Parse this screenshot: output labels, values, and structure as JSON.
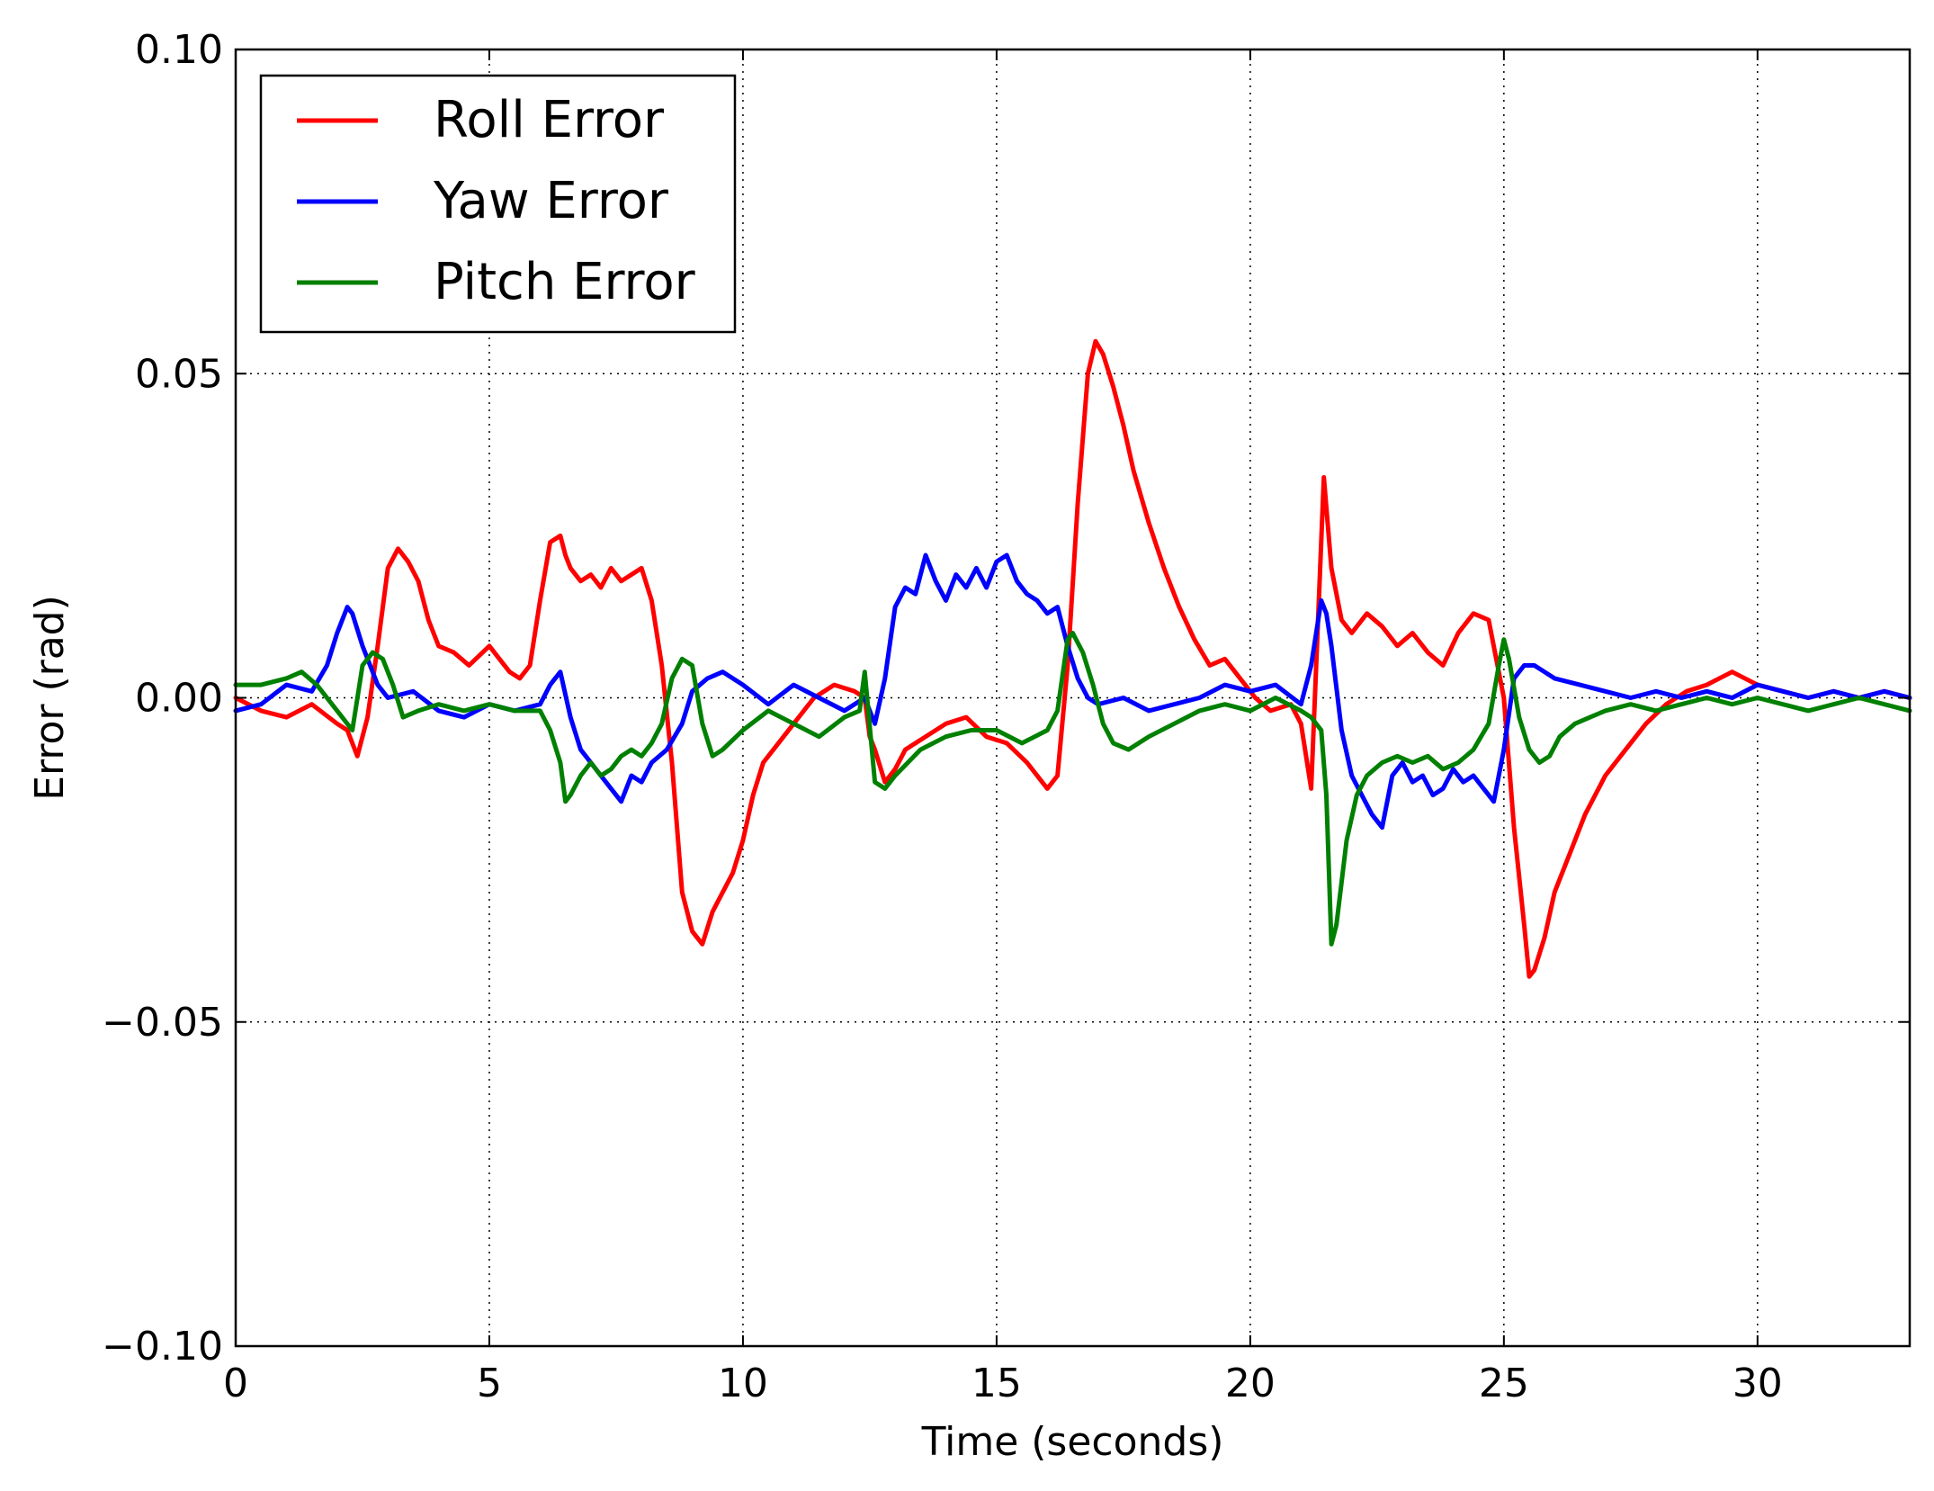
{
  "chart_data": {
    "type": "line",
    "xlabel": "Time (seconds)",
    "ylabel": "Error (rad)",
    "xlim": [
      0,
      33
    ],
    "ylim": [
      -0.1,
      0.1
    ],
    "grid": true,
    "grid_style": "dotted",
    "legend_position": "top-left",
    "x_ticks": [
      0,
      5,
      10,
      15,
      20,
      25,
      30
    ],
    "x_tick_labels": [
      "0",
      "5",
      "10",
      "15",
      "20",
      "25",
      "30"
    ],
    "y_ticks": [
      -0.1,
      -0.05,
      0.0,
      0.05,
      0.1
    ],
    "y_tick_labels": [
      "−0.10",
      "−0.05",
      "0.00",
      "0.05",
      "0.10"
    ],
    "series": [
      {
        "name": "Roll Error",
        "color": "#ff0000",
        "x": [
          0,
          0.5,
          1,
          1.5,
          2,
          2.2,
          2.4,
          2.6,
          2.8,
          3.0,
          3.2,
          3.4,
          3.6,
          3.8,
          4.0,
          4.3,
          4.6,
          5.0,
          5.2,
          5.4,
          5.6,
          5.8,
          6.0,
          6.2,
          6.4,
          6.5,
          6.6,
          6.8,
          7.0,
          7.2,
          7.4,
          7.6,
          7.8,
          8.0,
          8.2,
          8.4,
          8.6,
          8.8,
          9.0,
          9.2,
          9.4,
          9.6,
          9.8,
          10.0,
          10.2,
          10.4,
          10.6,
          11.0,
          11.4,
          11.8,
          12.2,
          12.4,
          12.5,
          12.6,
          12.8,
          13.0,
          13.2,
          13.6,
          14.0,
          14.4,
          14.8,
          15.2,
          15.6,
          16.0,
          16.2,
          16.4,
          16.6,
          16.8,
          16.95,
          17.1,
          17.3,
          17.5,
          17.7,
          18.0,
          18.3,
          18.6,
          18.9,
          19.2,
          19.5,
          19.8,
          20.1,
          20.4,
          20.8,
          21.0,
          21.2,
          21.3,
          21.45,
          21.6,
          21.8,
          22.0,
          22.3,
          22.6,
          22.9,
          23.2,
          23.5,
          23.8,
          24.1,
          24.4,
          24.7,
          25.0,
          25.2,
          25.4,
          25.5,
          25.6,
          25.8,
          26.0,
          26.3,
          26.6,
          27.0,
          27.4,
          27.8,
          28.2,
          28.6,
          29.0,
          29.5,
          30.0,
          30.5,
          31.0,
          31.5,
          32.0,
          32.5,
          33.0
        ],
        "y": [
          0.0,
          -0.002,
          -0.003,
          -0.001,
          -0.004,
          -0.005,
          -0.009,
          -0.003,
          0.008,
          0.02,
          0.023,
          0.021,
          0.018,
          0.012,
          0.008,
          0.007,
          0.005,
          0.008,
          0.006,
          0.004,
          0.003,
          0.005,
          0.015,
          0.024,
          0.025,
          0.022,
          0.02,
          0.018,
          0.019,
          0.017,
          0.02,
          0.018,
          0.019,
          0.02,
          0.015,
          0.005,
          -0.01,
          -0.03,
          -0.036,
          -0.038,
          -0.033,
          -0.03,
          -0.027,
          -0.022,
          -0.015,
          -0.01,
          -0.008,
          -0.004,
          0.0,
          0.002,
          0.001,
          0.0,
          -0.006,
          -0.008,
          -0.013,
          -0.011,
          -0.008,
          -0.006,
          -0.004,
          -0.003,
          -0.006,
          -0.007,
          -0.01,
          -0.014,
          -0.012,
          0.005,
          0.03,
          0.05,
          0.055,
          0.053,
          0.048,
          0.042,
          0.035,
          0.027,
          0.02,
          0.014,
          0.009,
          0.005,
          0.006,
          0.003,
          0.0,
          -0.002,
          -0.001,
          -0.004,
          -0.014,
          0.005,
          0.034,
          0.02,
          0.012,
          0.01,
          0.013,
          0.011,
          0.008,
          0.01,
          0.007,
          0.005,
          0.01,
          0.013,
          0.012,
          0.0,
          -0.02,
          -0.035,
          -0.043,
          -0.042,
          -0.037,
          -0.03,
          -0.024,
          -0.018,
          -0.012,
          -0.008,
          -0.004,
          -0.001,
          0.001,
          0.002,
          0.004,
          0.002,
          0.001,
          0.0,
          0.001,
          0.0,
          0.001,
          0.0
        ]
      },
      {
        "name": "Yaw Error",
        "color": "#0000ff",
        "x": [
          0,
          0.5,
          1,
          1.5,
          1.8,
          2.0,
          2.2,
          2.3,
          2.5,
          2.8,
          3.0,
          3.5,
          4.0,
          4.5,
          5.0,
          5.5,
          6.0,
          6.2,
          6.4,
          6.6,
          6.8,
          7.0,
          7.2,
          7.4,
          7.6,
          7.8,
          8.0,
          8.2,
          8.5,
          8.8,
          9.0,
          9.3,
          9.6,
          10.0,
          10.5,
          11.0,
          11.5,
          12.0,
          12.4,
          12.5,
          12.6,
          12.8,
          13.0,
          13.2,
          13.4,
          13.6,
          13.8,
          14.0,
          14.2,
          14.4,
          14.6,
          14.8,
          15.0,
          15.2,
          15.4,
          15.6,
          15.8,
          16.0,
          16.2,
          16.4,
          16.6,
          16.8,
          17.0,
          17.5,
          18.0,
          18.5,
          19.0,
          19.5,
          20.0,
          20.5,
          21.0,
          21.2,
          21.4,
          21.5,
          21.6,
          21.8,
          22.0,
          22.2,
          22.4,
          22.6,
          22.8,
          23.0,
          23.2,
          23.4,
          23.6,
          23.8,
          24.0,
          24.2,
          24.4,
          24.6,
          24.8,
          25.0,
          25.2,
          25.4,
          25.6,
          25.8,
          26.0,
          26.5,
          27.0,
          27.5,
          28.0,
          28.5,
          29.0,
          29.5,
          30.0,
          30.5,
          31.0,
          31.5,
          32.0,
          32.5,
          33.0
        ],
        "y": [
          -0.002,
          -0.001,
          0.002,
          0.001,
          0.005,
          0.01,
          0.014,
          0.013,
          0.008,
          0.002,
          0.0,
          0.001,
          -0.002,
          -0.003,
          -0.001,
          -0.002,
          -0.001,
          0.002,
          0.004,
          -0.003,
          -0.008,
          -0.01,
          -0.012,
          -0.014,
          -0.016,
          -0.012,
          -0.013,
          -0.01,
          -0.008,
          -0.004,
          0.001,
          0.003,
          0.004,
          0.002,
          -0.001,
          0.002,
          0.0,
          -0.002,
          0.0,
          -0.002,
          -0.004,
          0.003,
          0.014,
          0.017,
          0.016,
          0.022,
          0.018,
          0.015,
          0.019,
          0.017,
          0.02,
          0.017,
          0.021,
          0.022,
          0.018,
          0.016,
          0.015,
          0.013,
          0.014,
          0.008,
          0.003,
          0.0,
          -0.001,
          0.0,
          -0.002,
          -0.001,
          0.0,
          0.002,
          0.001,
          0.002,
          -0.001,
          0.005,
          0.015,
          0.013,
          0.008,
          -0.005,
          -0.012,
          -0.015,
          -0.018,
          -0.02,
          -0.012,
          -0.01,
          -0.013,
          -0.012,
          -0.015,
          -0.014,
          -0.011,
          -0.013,
          -0.012,
          -0.014,
          -0.016,
          -0.008,
          0.003,
          0.005,
          0.005,
          0.004,
          0.003,
          0.002,
          0.001,
          0.0,
          0.001,
          0.0,
          0.001,
          0.0,
          0.002,
          0.001,
          0.0,
          0.001,
          0.0,
          0.001,
          0.0
        ]
      },
      {
        "name": "Pitch Error",
        "color": "#008000",
        "x": [
          0,
          0.5,
          1,
          1.3,
          1.6,
          2.0,
          2.3,
          2.5,
          2.7,
          2.9,
          3.1,
          3.3,
          3.6,
          4.0,
          4.5,
          5.0,
          5.5,
          6.0,
          6.2,
          6.4,
          6.5,
          6.6,
          6.8,
          7.0,
          7.2,
          7.4,
          7.6,
          7.8,
          8.0,
          8.2,
          8.4,
          8.6,
          8.8,
          9.0,
          9.2,
          9.4,
          9.6,
          10.0,
          10.5,
          11.0,
          11.5,
          12.0,
          12.3,
          12.4,
          12.6,
          12.8,
          13.0,
          13.5,
          14.0,
          14.5,
          15.0,
          15.5,
          16.0,
          16.2,
          16.4,
          16.5,
          16.7,
          16.9,
          17.1,
          17.3,
          17.6,
          18.0,
          18.5,
          19.0,
          19.5,
          20.0,
          20.5,
          21.0,
          21.2,
          21.4,
          21.5,
          21.6,
          21.7,
          21.9,
          22.1,
          22.3,
          22.6,
          22.9,
          23.2,
          23.5,
          23.8,
          24.1,
          24.4,
          24.7,
          24.9,
          25.0,
          25.1,
          25.3,
          25.5,
          25.7,
          25.9,
          26.1,
          26.4,
          26.7,
          27.0,
          27.5,
          28.0,
          28.5,
          29.0,
          29.5,
          30.0,
          30.5,
          31.0,
          31.5,
          32.0,
          32.5,
          33.0
        ],
        "y": [
          0.002,
          0.002,
          0.003,
          0.004,
          0.002,
          -0.002,
          -0.005,
          0.005,
          0.007,
          0.006,
          0.002,
          -0.003,
          -0.002,
          -0.001,
          -0.002,
          -0.001,
          -0.002,
          -0.002,
          -0.005,
          -0.01,
          -0.016,
          -0.015,
          -0.012,
          -0.01,
          -0.012,
          -0.011,
          -0.009,
          -0.008,
          -0.009,
          -0.007,
          -0.004,
          0.003,
          0.006,
          0.005,
          -0.004,
          -0.009,
          -0.008,
          -0.005,
          -0.002,
          -0.004,
          -0.006,
          -0.003,
          -0.002,
          0.004,
          -0.013,
          -0.014,
          -0.012,
          -0.008,
          -0.006,
          -0.005,
          -0.005,
          -0.007,
          -0.005,
          -0.002,
          0.009,
          0.01,
          0.007,
          0.002,
          -0.004,
          -0.007,
          -0.008,
          -0.006,
          -0.004,
          -0.002,
          -0.001,
          -0.002,
          0.0,
          -0.002,
          -0.003,
          -0.005,
          -0.015,
          -0.038,
          -0.035,
          -0.022,
          -0.015,
          -0.012,
          -0.01,
          -0.009,
          -0.01,
          -0.009,
          -0.011,
          -0.01,
          -0.008,
          -0.004,
          0.005,
          0.009,
          0.006,
          -0.003,
          -0.008,
          -0.01,
          -0.009,
          -0.006,
          -0.004,
          -0.003,
          -0.002,
          -0.001,
          -0.002,
          -0.001,
          0.0,
          -0.001,
          0.0,
          -0.001,
          -0.002,
          -0.001,
          0.0,
          -0.001,
          -0.002
        ]
      }
    ]
  }
}
